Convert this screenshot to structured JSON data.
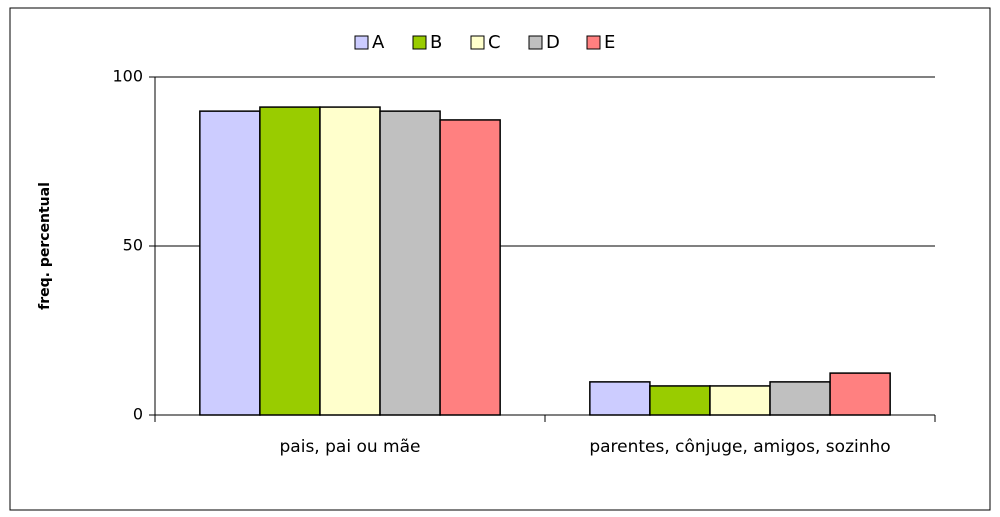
{
  "chart_data": {
    "type": "bar",
    "y_label": "freq. percentual",
    "categories": [
      "pais, pai ou mãe",
      "parentes, cônjuge, amigos, sozinho"
    ],
    "series": [
      {
        "name": "A",
        "color": "#ccccff",
        "values": [
          89.9,
          9.8
        ]
      },
      {
        "name": "B",
        "color": "#99cc00",
        "values": [
          91.1,
          8.6
        ]
      },
      {
        "name": "C",
        "color": "#ffffcc",
        "values": [
          91.1,
          8.6
        ]
      },
      {
        "name": "D",
        "color": "#c0c0c0",
        "values": [
          89.9,
          9.8
        ]
      },
      {
        "name": "E",
        "color": "#ff8080",
        "values": [
          87.3,
          12.4
        ]
      }
    ],
    "ylim": [
      0,
      100
    ],
    "yticks": [
      0,
      50,
      100
    ],
    "grid": true,
    "legend": "top"
  }
}
